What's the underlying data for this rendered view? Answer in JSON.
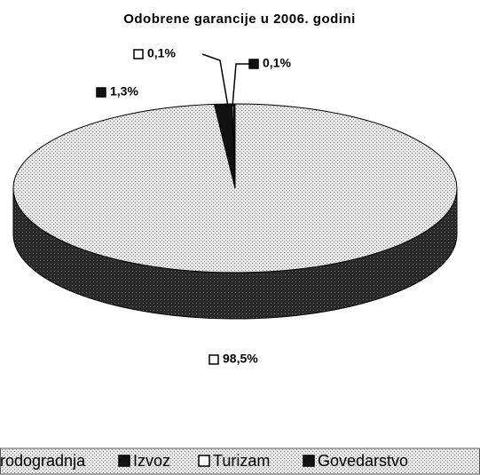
{
  "chart_data": {
    "type": "pie3d",
    "title": "Odobrene garancije u 2006. godini",
    "categories": [
      "Brodogradnja",
      "Izvoz",
      "Turizam",
      "Govedarstvo"
    ],
    "values": [
      98.5,
      1.3,
      0.1,
      0.1
    ],
    "value_labels": [
      "98,5%",
      "1,3%",
      "0,1%",
      "0,1%"
    ],
    "colors": [
      "#d4d4d4",
      "#111111",
      "#ffffff",
      "#111111"
    ],
    "legend": "bottom"
  }
}
